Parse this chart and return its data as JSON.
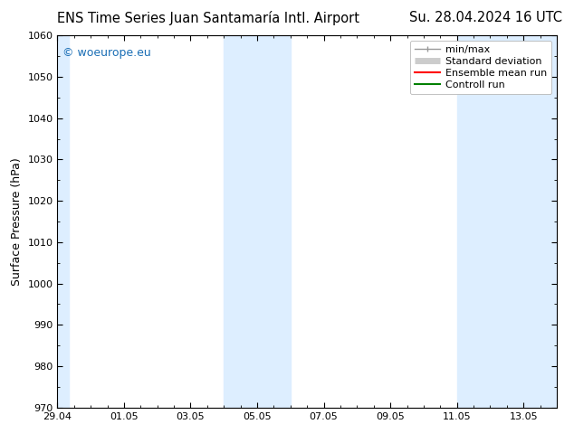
{
  "title_left": "ENS Time Series Juan Santamaría Intl. Airport",
  "title_right": "Su. 28.04.2024 16 UTC",
  "ylabel": "Surface Pressure (hPa)",
  "ylim": [
    970,
    1060
  ],
  "yticks": [
    970,
    980,
    990,
    1000,
    1010,
    1020,
    1030,
    1040,
    1050,
    1060
  ],
  "xlim": [
    0,
    15
  ],
  "x_tick_labels": [
    "29.04",
    "01.05",
    "03.05",
    "05.05",
    "07.05",
    "09.05",
    "11.05",
    "13.05"
  ],
  "x_tick_positions": [
    0,
    2,
    4,
    6,
    8,
    10,
    12,
    14
  ],
  "shaded_regions": [
    {
      "x_start": 0.0,
      "x_end": 0.35,
      "color": "#ddeeff"
    },
    {
      "x_start": 5.0,
      "x_end": 7.0,
      "color": "#ddeeff"
    },
    {
      "x_start": 12.0,
      "x_end": 15.0,
      "color": "#ddeeff"
    }
  ],
  "watermark_text": "© woeurope.eu",
  "watermark_color": "#1a6eb5",
  "background_color": "#ffffff",
  "legend_items": [
    {
      "label": "min/max",
      "color": "#999999",
      "lw": 1.0
    },
    {
      "label": "Standard deviation",
      "color": "#cccccc",
      "lw": 5
    },
    {
      "label": "Ensemble mean run",
      "color": "#ff0000",
      "lw": 1.5
    },
    {
      "label": "Controll run",
      "color": "#008000",
      "lw": 1.5
    }
  ],
  "font_size_title": 10.5,
  "font_size_axis": 9,
  "font_size_ticks": 8,
  "font_size_legend": 8,
  "font_size_watermark": 9
}
